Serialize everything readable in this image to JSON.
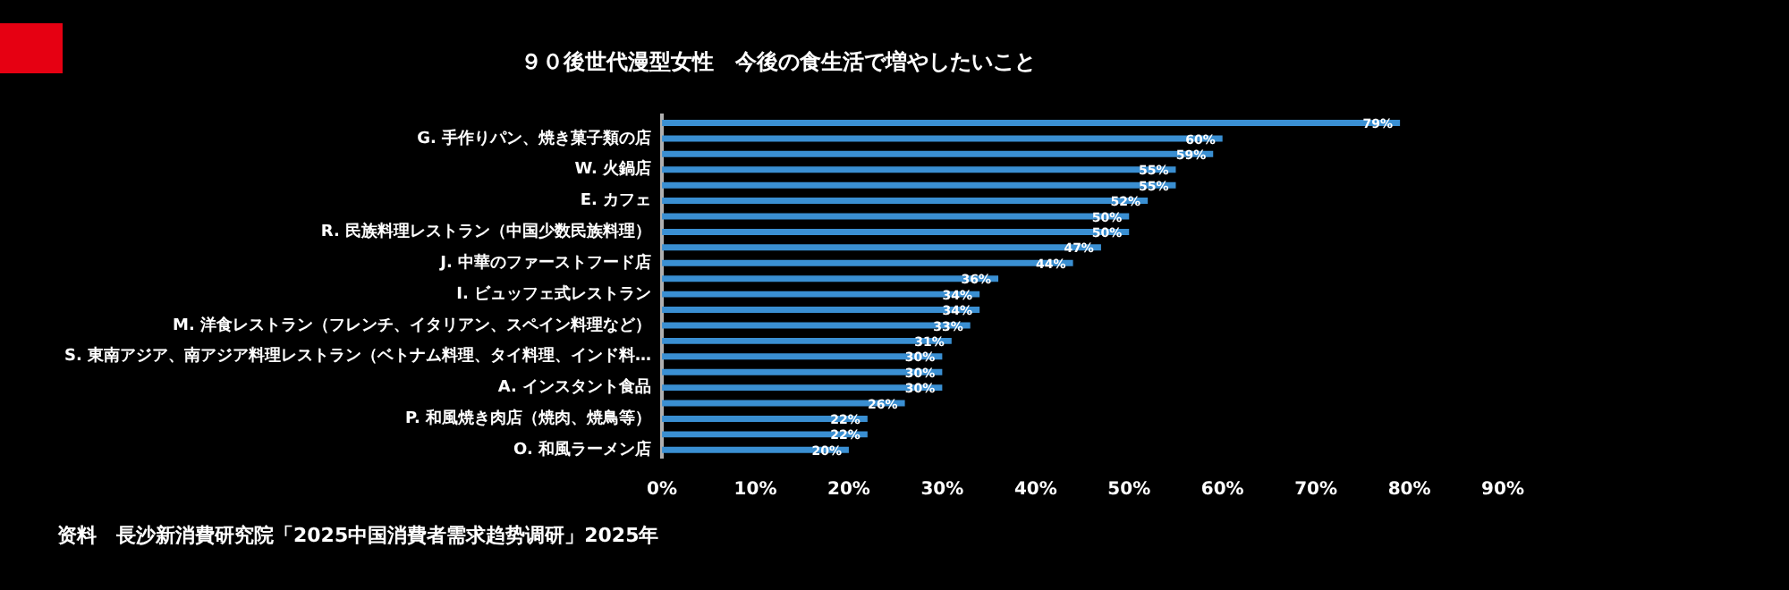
{
  "chart_data": {
    "type": "bar",
    "orientation": "horizontal",
    "title": "９０後世代漫型女性　今後の食生活で増やしたいこと",
    "categories": [
      null,
      "G. 手作りパン、焼き菓子類の店",
      null,
      "W. 火鍋店",
      null,
      "E. カフェ",
      null,
      "R. 民族料理レストラン（中国少数民族料理）",
      null,
      "J. 中華のファーストフード店",
      null,
      "I. ビュッフェ式レストラン",
      null,
      "M. 洋食レストラン（フレンチ、イタリアン、スペイン料理など）",
      null,
      "S. 東南アジア、南アジア料理レストラン（ベトナム料理、タイ料理、インド料…",
      null,
      "A. インスタント食品",
      null,
      "P. 和風焼き肉店（焼肉、焼鳥等）",
      null,
      "O. 和風ラーメン店"
    ],
    "values": [
      79,
      60,
      59,
      55,
      55,
      52,
      50,
      50,
      47,
      44,
      36,
      34,
      34,
      33,
      31,
      30,
      30,
      30,
      26,
      22,
      22,
      20
    ],
    "value_labels": [
      "79%",
      "60%",
      "59%",
      "55%",
      "55%",
      "52%",
      "50%",
      "50%",
      "47%",
      "44%",
      "36%",
      "34%",
      "34%",
      "33%",
      "31%",
      "30%",
      "30%",
      "30%",
      "26%",
      "22%",
      "22%",
      "20%"
    ],
    "color": "#3a8fd2",
    "xlim": [
      0,
      90
    ],
    "xticks": [
      {
        "value": 0,
        "label": "0%"
      },
      {
        "value": 10,
        "label": "10%"
      },
      {
        "value": 20,
        "label": "20%"
      },
      {
        "value": 30,
        "label": "30%"
      },
      {
        "value": 40,
        "label": "40%"
      },
      {
        "value": 50,
        "label": "50%"
      },
      {
        "value": 60,
        "label": "60%"
      },
      {
        "value": 70,
        "label": "70%"
      },
      {
        "value": 80,
        "label": "80%"
      },
      {
        "value": 90,
        "label": "90%"
      }
    ],
    "grid": false,
    "legend": false,
    "annotations": [
      "资料　長沙新消費研究院「2025中国消費者需求趋势调研」2025年"
    ]
  }
}
